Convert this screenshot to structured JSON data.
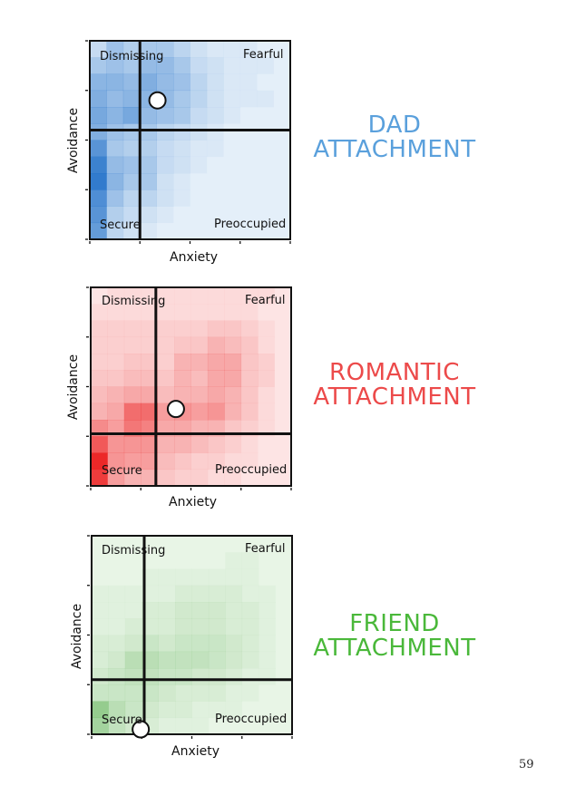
{
  "page_number": "59",
  "chart_data": [
    {
      "type": "heatmap",
      "title_line1": "DAD",
      "title_line2": "ATTACHMENT",
      "xlabel": "Anxiety",
      "ylabel": "Avoidance",
      "color": "#5aa0dc",
      "cell_rgb": [
        30,
        110,
        200
      ],
      "background": "#e4eff9",
      "quadrants": {
        "top_left": "Dismissing",
        "top_right": "Fearful",
        "bottom_left": "Secure",
        "bottom_right": "Preoccupied"
      },
      "xlim": [
        0,
        4
      ],
      "ylim": [
        0,
        4
      ],
      "divider": {
        "x": 1.0,
        "y": 2.2
      },
      "marker": {
        "x": 1.35,
        "y": 2.8
      },
      "grid": [
        [
          0.15,
          0.35,
          0.25,
          0.3,
          0.3,
          0.2,
          0.1,
          0.05,
          0.05,
          0.05,
          0.0,
          0.0
        ],
        [
          0.3,
          0.35,
          0.3,
          0.4,
          0.4,
          0.3,
          0.15,
          0.1,
          0.05,
          0.05,
          0.05,
          0.0
        ],
        [
          0.45,
          0.45,
          0.4,
          0.5,
          0.4,
          0.35,
          0.2,
          0.1,
          0.05,
          0.05,
          0.0,
          0.0
        ],
        [
          0.5,
          0.4,
          0.45,
          0.45,
          0.4,
          0.3,
          0.2,
          0.1,
          0.05,
          0.05,
          0.05,
          0.0
        ],
        [
          0.55,
          0.45,
          0.55,
          0.4,
          0.35,
          0.3,
          0.15,
          0.1,
          0.05,
          0.0,
          0.0,
          0.0
        ],
        [
          0.5,
          0.35,
          0.3,
          0.3,
          0.2,
          0.15,
          0.1,
          0.05,
          0.0,
          0.0,
          0.0,
          0.0
        ],
        [
          0.7,
          0.3,
          0.25,
          0.25,
          0.15,
          0.1,
          0.05,
          0.05,
          0.0,
          0.0,
          0.0,
          0.0
        ],
        [
          0.85,
          0.4,
          0.35,
          0.3,
          0.15,
          0.1,
          0.05,
          0.0,
          0.0,
          0.0,
          0.0,
          0.0
        ],
        [
          0.9,
          0.45,
          0.3,
          0.3,
          0.1,
          0.05,
          0.0,
          0.0,
          0.0,
          0.0,
          0.0,
          0.0
        ],
        [
          0.75,
          0.35,
          0.2,
          0.2,
          0.1,
          0.05,
          0.0,
          0.0,
          0.0,
          0.0,
          0.0,
          0.0
        ],
        [
          0.7,
          0.25,
          0.15,
          0.1,
          0.05,
          0.0,
          0.0,
          0.0,
          0.0,
          0.0,
          0.0,
          0.0
        ],
        [
          0.65,
          0.2,
          0.1,
          0.05,
          0.0,
          0.0,
          0.0,
          0.0,
          0.0,
          0.0,
          0.0,
          0.0
        ]
      ]
    },
    {
      "type": "heatmap",
      "title_line1": "ROMANTIC",
      "title_line2": "ATTACHMENT",
      "xlabel": "Anxiety",
      "ylabel": "Avoidance",
      "color": "#ec4a4a",
      "cell_rgb": [
        235,
        30,
        30
      ],
      "background": "#fde4e4",
      "quadrants": {
        "top_left": "Dismissing",
        "top_right": "Fearful",
        "bottom_left": "Secure",
        "bottom_right": "Preoccupied"
      },
      "xlim": [
        0,
        4
      ],
      "ylim": [
        0,
        4
      ],
      "divider": {
        "x": 1.3,
        "y": 1.05
      },
      "marker": {
        "x": 1.7,
        "y": 1.55
      },
      "grid": [
        [
          0.0,
          0.05,
          0.05,
          0.05,
          0.05,
          0.05,
          0.05,
          0.05,
          0.05,
          0.05,
          0.05,
          0.0
        ],
        [
          0.05,
          0.05,
          0.05,
          0.05,
          0.05,
          0.05,
          0.05,
          0.05,
          0.05,
          0.05,
          0.0,
          0.0
        ],
        [
          0.1,
          0.1,
          0.1,
          0.1,
          0.1,
          0.1,
          0.1,
          0.15,
          0.15,
          0.1,
          0.05,
          0.0
        ],
        [
          0.1,
          0.1,
          0.1,
          0.1,
          0.1,
          0.15,
          0.15,
          0.25,
          0.2,
          0.15,
          0.05,
          0.0
        ],
        [
          0.1,
          0.1,
          0.15,
          0.15,
          0.1,
          0.25,
          0.25,
          0.3,
          0.3,
          0.15,
          0.1,
          0.0
        ],
        [
          0.15,
          0.15,
          0.2,
          0.2,
          0.15,
          0.25,
          0.2,
          0.3,
          0.3,
          0.15,
          0.1,
          0.0
        ],
        [
          0.2,
          0.25,
          0.3,
          0.3,
          0.2,
          0.25,
          0.25,
          0.3,
          0.25,
          0.15,
          0.05,
          0.0
        ],
        [
          0.25,
          0.3,
          0.6,
          0.6,
          0.35,
          0.4,
          0.35,
          0.4,
          0.25,
          0.15,
          0.05,
          0.0
        ],
        [
          0.45,
          0.35,
          0.55,
          0.5,
          0.3,
          0.3,
          0.25,
          0.25,
          0.15,
          0.1,
          0.05,
          0.0
        ],
        [
          0.7,
          0.4,
          0.4,
          0.4,
          0.25,
          0.25,
          0.2,
          0.15,
          0.1,
          0.05,
          0.0,
          0.0
        ],
        [
          0.95,
          0.4,
          0.35,
          0.35,
          0.2,
          0.15,
          0.1,
          0.1,
          0.05,
          0.05,
          0.0,
          0.0
        ],
        [
          0.85,
          0.35,
          0.25,
          0.25,
          0.15,
          0.1,
          0.1,
          0.05,
          0.05,
          0.0,
          0.0,
          0.0
        ]
      ]
    },
    {
      "type": "heatmap",
      "title_line1": "FRIEND",
      "title_line2": "ATTACHMENT",
      "xlabel": "Anxiety",
      "ylabel": "Avoidance",
      "color": "#4ab83a",
      "cell_rgb": [
        80,
        170,
        70
      ],
      "background": "#e8f5e6",
      "quadrants": {
        "top_left": "Dismissing",
        "top_right": "Fearful",
        "bottom_left": "Secure",
        "bottom_right": "Preoccupied"
      },
      "xlim": [
        0,
        4
      ],
      "ylim": [
        0,
        4
      ],
      "divider": {
        "x": 1.05,
        "y": 1.1
      },
      "marker": {
        "x": 0.98,
        "y": 0.1
      },
      "grid": [
        [
          0.0,
          0.0,
          0.0,
          0.0,
          0.0,
          0.0,
          0.0,
          0.0,
          0.0,
          0.0,
          0.0,
          0.0
        ],
        [
          0.0,
          0.0,
          0.0,
          0.0,
          0.0,
          0.0,
          0.0,
          0.0,
          0.05,
          0.05,
          0.0,
          0.0
        ],
        [
          0.0,
          0.0,
          0.0,
          0.05,
          0.05,
          0.05,
          0.05,
          0.05,
          0.05,
          0.05,
          0.0,
          0.0
        ],
        [
          0.05,
          0.05,
          0.05,
          0.05,
          0.05,
          0.1,
          0.1,
          0.1,
          0.1,
          0.05,
          0.05,
          0.0
        ],
        [
          0.05,
          0.05,
          0.05,
          0.1,
          0.1,
          0.15,
          0.15,
          0.15,
          0.1,
          0.1,
          0.05,
          0.0
        ],
        [
          0.05,
          0.05,
          0.1,
          0.1,
          0.1,
          0.15,
          0.15,
          0.15,
          0.1,
          0.1,
          0.05,
          0.0
        ],
        [
          0.1,
          0.1,
          0.15,
          0.2,
          0.15,
          0.2,
          0.2,
          0.2,
          0.15,
          0.1,
          0.05,
          0.0
        ],
        [
          0.1,
          0.15,
          0.3,
          0.3,
          0.25,
          0.25,
          0.25,
          0.2,
          0.15,
          0.1,
          0.05,
          0.0
        ],
        [
          0.15,
          0.2,
          0.25,
          0.25,
          0.2,
          0.2,
          0.15,
          0.15,
          0.1,
          0.05,
          0.05,
          0.0
        ],
        [
          0.2,
          0.2,
          0.2,
          0.2,
          0.15,
          0.1,
          0.1,
          0.1,
          0.05,
          0.05,
          0.0,
          0.0
        ],
        [
          0.55,
          0.3,
          0.2,
          0.15,
          0.1,
          0.1,
          0.05,
          0.05,
          0.05,
          0.0,
          0.0,
          0.0
        ],
        [
          0.45,
          0.25,
          0.15,
          0.1,
          0.05,
          0.05,
          0.05,
          0.0,
          0.0,
          0.0,
          0.0,
          0.0
        ]
      ]
    }
  ]
}
